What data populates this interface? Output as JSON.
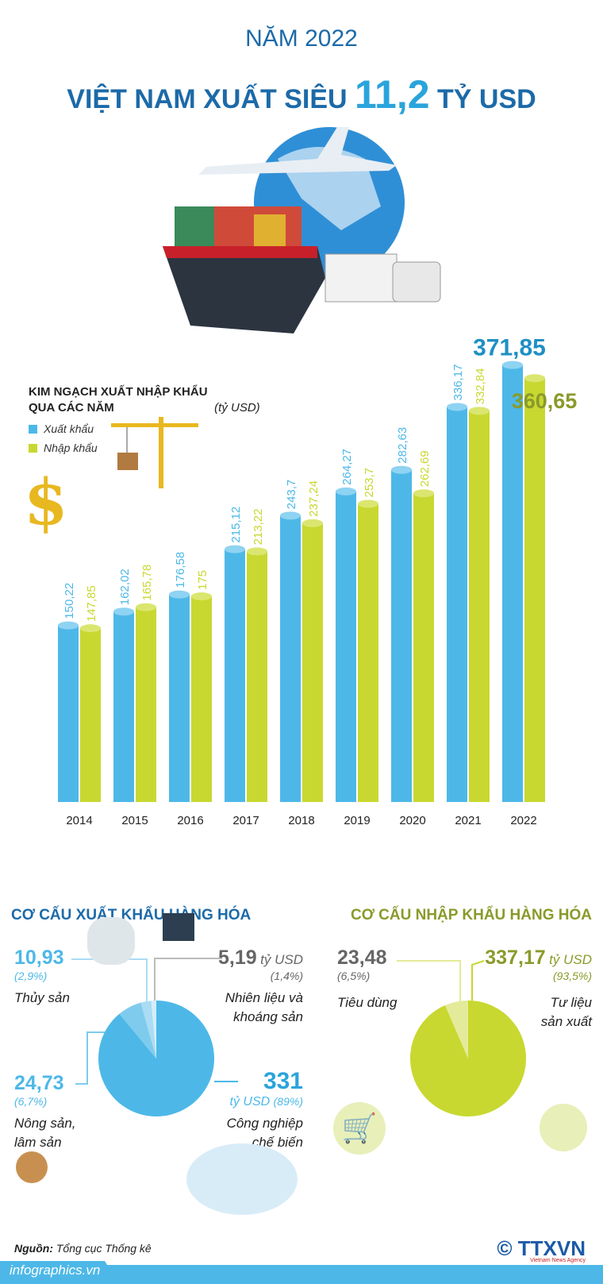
{
  "header": {
    "line1": "NĂM 2022",
    "line2_pre": "VIỆT NAM XUẤT SIÊU",
    "line2_value": "11,2",
    "line2_post": "TỶ USD"
  },
  "chart_data": {
    "type": "bar",
    "title": "KIM NGẠCH XUẤT NHẬP KHẨU QUA CÁC NĂM",
    "title_unit": "(tỷ USD)",
    "categories": [
      "2014",
      "2015",
      "2016",
      "2017",
      "2018",
      "2019",
      "2020",
      "2021",
      "2022"
    ],
    "series": [
      {
        "name": "Xuất khẩu",
        "color": "#4db8e8",
        "values": [
          150.22,
          162.02,
          176.58,
          215.12,
          243.7,
          264.27,
          282.63,
          336.17,
          371.85
        ],
        "labels": [
          "150,22",
          "162,02",
          "176,58",
          "215,12",
          "243,7",
          "264,27",
          "282,63",
          "336,17",
          "371,85"
        ]
      },
      {
        "name": "Nhập khẩu",
        "color": "#c8d830",
        "values": [
          147.85,
          165.78,
          175,
          213.22,
          237.24,
          253.7,
          262.69,
          332.84,
          360.65
        ],
        "labels": [
          "147,85",
          "165,78",
          "175",
          "213,22",
          "237,24",
          "253,7",
          "262,69",
          "332,84",
          "360,65"
        ]
      }
    ],
    "ylim": [
      0,
      380
    ],
    "grid": false,
    "legend": "top-left"
  },
  "export_pie": {
    "title": "CƠ CẤU XUẤT KHẨU HÀNG HÓA",
    "color": "#1c6aa8",
    "slices": [
      {
        "label": "Công nghiệp chế biến",
        "value": "331",
        "unit": "tỷ USD",
        "pct": "(89%)",
        "share": 89,
        "color": "#4db8e8"
      },
      {
        "label": "Nông sản, lâm sản",
        "value": "24,73",
        "pct": "(6,7%)",
        "share": 6.7,
        "color": "#7fcbee"
      },
      {
        "label": "Thủy sản",
        "value": "10,93",
        "pct": "(2,9%)",
        "share": 2.9,
        "color": "#aadcf4"
      },
      {
        "label": "Nhiên liệu và khoáng sản",
        "value": "5,19",
        "unit": "tỷ USD",
        "pct": "(1,4%)",
        "share": 1.4,
        "color": "#d4eefa"
      }
    ]
  },
  "import_pie": {
    "title": "CƠ CẤU NHẬP KHẨU HÀNG HÓA",
    "color": "#8a9a2a",
    "slices": [
      {
        "label": "Tư liệu sản xuất",
        "value": "337,17",
        "unit": "tỷ USD",
        "pct": "(93,5%)",
        "share": 93.5,
        "color": "#c8d830"
      },
      {
        "label": "Tiêu dùng",
        "value": "23,48",
        "pct": "(6,5%)",
        "share": 6.5,
        "color": "#e3eb9a"
      }
    ]
  },
  "footer": {
    "source_label": "Nguồn:",
    "source": "Tổng cục Thống kê",
    "site": "infographics.vn",
    "logo": "© TTXVN",
    "logo_sub": "Vietnam News Agency"
  }
}
